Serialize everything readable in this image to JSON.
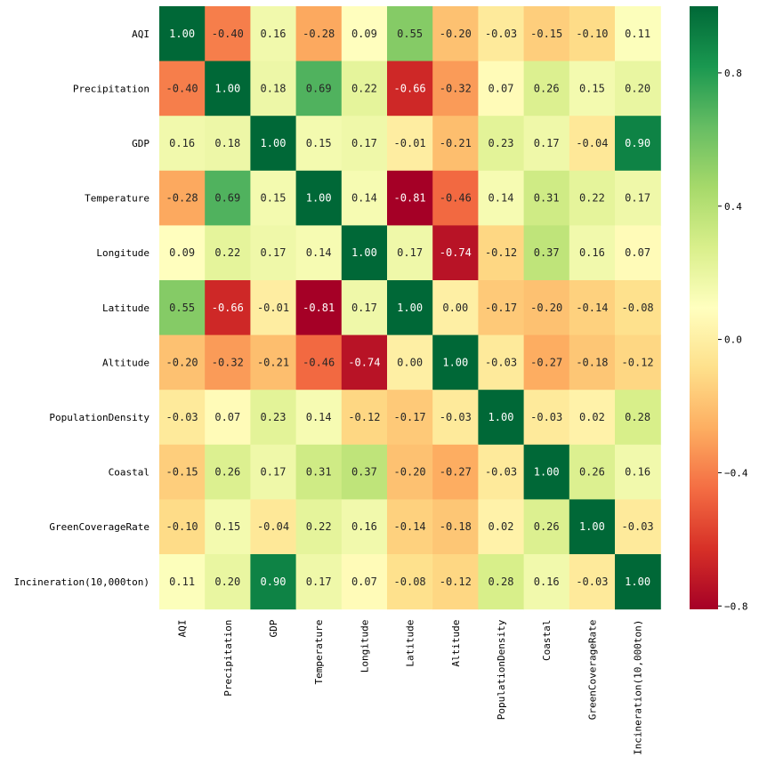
{
  "chart_data": {
    "type": "heatmap",
    "title": "",
    "row_labels": [
      "AQI",
      "Precipitation",
      "GDP",
      "Temperature",
      "Longitude",
      "Latitude",
      "Altitude",
      "PopulationDensity",
      "Coastal",
      "GreenCoverageRate",
      "Incineration(10,000ton)"
    ],
    "col_labels": [
      "AQI",
      "Precipitation",
      "GDP",
      "Temperature",
      "Longitude",
      "Latitude",
      "Altitude",
      "PopulationDensity",
      "Coastal",
      "GreenCoverageRate",
      "Incineration(10,000ton)"
    ],
    "matrix": [
      [
        1.0,
        -0.4,
        0.16,
        -0.28,
        0.09,
        0.55,
        -0.2,
        -0.03,
        -0.15,
        -0.1,
        0.11
      ],
      [
        -0.4,
        1.0,
        0.18,
        0.69,
        0.22,
        -0.66,
        -0.32,
        0.07,
        0.26,
        0.15,
        0.2
      ],
      [
        0.16,
        0.18,
        1.0,
        0.15,
        0.17,
        -0.01,
        -0.21,
        0.23,
        0.17,
        -0.04,
        0.9
      ],
      [
        -0.28,
        0.69,
        0.15,
        1.0,
        0.14,
        -0.81,
        -0.46,
        0.14,
        0.31,
        0.22,
        0.17
      ],
      [
        0.09,
        0.22,
        0.17,
        0.14,
        1.0,
        0.17,
        -0.74,
        -0.12,
        0.37,
        0.16,
        0.07
      ],
      [
        0.55,
        -0.66,
        -0.01,
        -0.81,
        0.17,
        1.0,
        0.0,
        -0.17,
        -0.2,
        -0.14,
        -0.08
      ],
      [
        -0.2,
        -0.32,
        -0.21,
        -0.46,
        -0.74,
        0.0,
        1.0,
        -0.03,
        -0.27,
        -0.18,
        -0.12
      ],
      [
        -0.03,
        0.07,
        0.23,
        0.14,
        -0.12,
        -0.17,
        -0.03,
        1.0,
        -0.03,
        0.02,
        0.28
      ],
      [
        -0.15,
        0.26,
        0.17,
        0.31,
        0.37,
        -0.2,
        -0.27,
        -0.03,
        1.0,
        0.26,
        0.16
      ],
      [
        -0.1,
        0.15,
        -0.04,
        0.22,
        0.16,
        -0.14,
        -0.18,
        0.02,
        0.26,
        1.0,
        -0.03
      ],
      [
        0.11,
        0.2,
        0.9,
        0.17,
        0.07,
        -0.08,
        -0.12,
        0.28,
        0.16,
        -0.03,
        1.0
      ]
    ],
    "value_format": "0.00",
    "colormap": "RdYlGn",
    "vmin": -0.81,
    "vmax": 1.0,
    "colorbar_ticks": [
      -0.8,
      -0.4,
      0.0,
      0.4,
      0.8
    ]
  }
}
